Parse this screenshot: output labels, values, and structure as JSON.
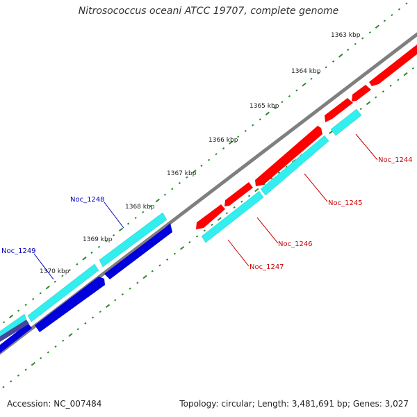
{
  "title": "Nitrosococcus oceani ATCC 19707, complete genome",
  "footer": {
    "accession": "Accession: NC_007484",
    "stats": "Topology: circular; Length: 3,481,691 bp; Genes: 3,027"
  },
  "colors": {
    "backbone": "#7f7f7f",
    "forward_cds": "#ff0000",
    "reverse_cds": "#0000dd",
    "forward_rna_shading": "#33eeee",
    "tick": "#2a8a2a",
    "forward_label": "#cc0000",
    "reverse_label": "#0000bb"
  },
  "kbp_labels": [
    "1363 kbp",
    "1364 kbp",
    "1365 kbp",
    "1366 kbp",
    "1367 kbp",
    "1368 kbp",
    "1369 kbp",
    "1370 kbp"
  ],
  "forward_genes": [
    "Noc_1244",
    "Noc_1245",
    "Noc_1246",
    "Noc_1247"
  ],
  "reverse_genes": [
    "Noc_1248",
    "Noc_1249"
  ]
}
